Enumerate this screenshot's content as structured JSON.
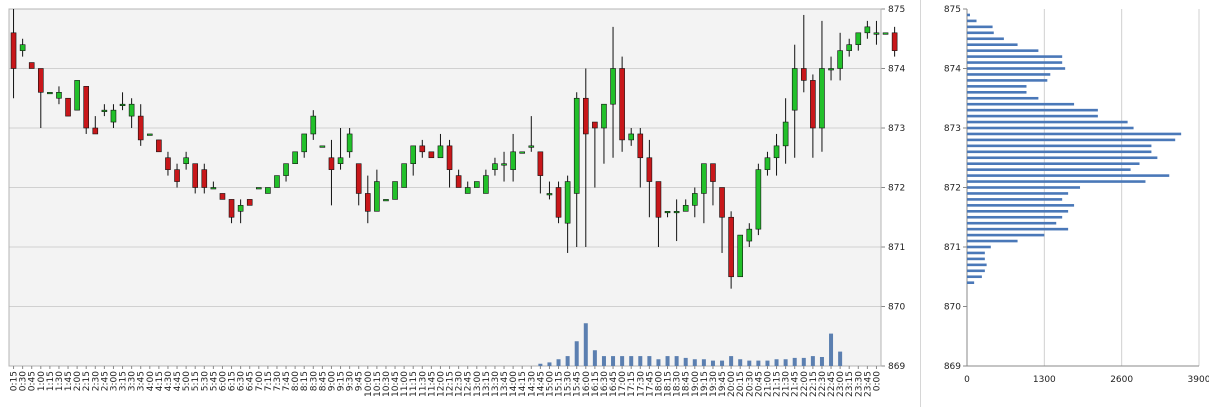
{
  "chart_data": [
    {
      "type": "candlestick",
      "x_labels": [
        "0:15",
        "0:30",
        "0:45",
        "1:00",
        "1:15",
        "1:30",
        "1:45",
        "2:00",
        "2:15",
        "2:30",
        "2:45",
        "3:00",
        "3:15",
        "3:30",
        "3:45",
        "4:00",
        "4:15",
        "4:30",
        "4:45",
        "5:00",
        "5:15",
        "5:30",
        "5:45",
        "6:00",
        "6:15",
        "6:30",
        "6:45",
        "7:00",
        "7:15",
        "7:30",
        "7:45",
        "8:00",
        "8:15",
        "8:30",
        "8:45",
        "9:00",
        "9:15",
        "9:30",
        "9:45",
        "10:00",
        "10:15",
        "10:30",
        "10:45",
        "11:00",
        "11:15",
        "11:30",
        "11:45",
        "12:00",
        "12:15",
        "12:30",
        "12:45",
        "13:00",
        "13:15",
        "13:30",
        "13:45",
        "14:00",
        "14:15",
        "14:30",
        "14:45",
        "15:00",
        "15:15",
        "15:30",
        "15:45",
        "16:00",
        "16:15",
        "16:30",
        "16:45",
        "17:00",
        "17:15",
        "17:30",
        "17:45",
        "18:00",
        "18:15",
        "18:30",
        "18:45",
        "19:00",
        "19:15",
        "19:30",
        "19:45",
        "20:00",
        "20:15",
        "20:30",
        "20:45",
        "21:00",
        "21:15",
        "21:30",
        "21:45",
        "22:00",
        "22:15",
        "22:30",
        "22:45",
        "23:00",
        "23:15",
        "23:30",
        "23:45",
        "0:00"
      ],
      "y_ticks": [
        869,
        870,
        871,
        872,
        873,
        874,
        875
      ],
      "ylim": [
        869,
        875
      ],
      "grid": true,
      "colors": {
        "up": "#22c02a",
        "down": "#c8171a",
        "volume": "#5b7fb0",
        "grid": "#d0d0d0",
        "plot_bg": "#f3f3f3"
      },
      "candles": [
        [
          874.6,
          875.0,
          873.5,
          874.0
        ],
        [
          874.3,
          874.5,
          874.2,
          874.4
        ],
        [
          874.1,
          874.1,
          874.0,
          874.0
        ],
        [
          874.0,
          874.0,
          873.0,
          873.6
        ],
        [
          873.6,
          873.6,
          873.6,
          873.6
        ],
        [
          873.5,
          873.7,
          873.4,
          873.6
        ],
        [
          873.5,
          873.5,
          873.2,
          873.2
        ],
        [
          873.3,
          873.8,
          873.3,
          873.8
        ],
        [
          873.7,
          873.7,
          872.9,
          873.0
        ],
        [
          873.0,
          873.2,
          872.9,
          872.9
        ],
        [
          873.3,
          873.4,
          873.2,
          873.3
        ],
        [
          873.1,
          873.4,
          873.0,
          873.3
        ],
        [
          873.4,
          873.6,
          873.3,
          873.4
        ],
        [
          873.2,
          873.5,
          873.0,
          873.4
        ],
        [
          873.2,
          873.4,
          872.7,
          872.8
        ],
        [
          872.9,
          872.9,
          872.9,
          872.9
        ],
        [
          872.8,
          872.8,
          872.6,
          872.6
        ],
        [
          872.5,
          872.6,
          872.2,
          872.3
        ],
        [
          872.3,
          872.4,
          872.0,
          872.1
        ],
        [
          872.4,
          872.6,
          872.3,
          872.5
        ],
        [
          872.4,
          872.4,
          871.9,
          872.0
        ],
        [
          872.3,
          872.4,
          871.9,
          872.0
        ],
        [
          872.0,
          872.1,
          872.0,
          872.0
        ],
        [
          871.9,
          871.9,
          871.8,
          871.8
        ],
        [
          871.8,
          871.8,
          871.4,
          871.5
        ],
        [
          871.6,
          871.8,
          871.4,
          871.7
        ],
        [
          871.8,
          871.8,
          871.7,
          871.7
        ],
        [
          872.0,
          872.0,
          872.0,
          872.0
        ],
        [
          871.9,
          872.0,
          871.9,
          872.0
        ],
        [
          872.0,
          872.2,
          872.0,
          872.2
        ],
        [
          872.2,
          872.4,
          872.1,
          872.4
        ],
        [
          872.4,
          872.6,
          872.4,
          872.6
        ],
        [
          872.6,
          872.9,
          872.5,
          872.9
        ],
        [
          872.9,
          873.3,
          872.8,
          873.2
        ],
        [
          872.7,
          872.7,
          872.7,
          872.7
        ],
        [
          872.5,
          872.8,
          871.7,
          872.3
        ],
        [
          872.4,
          873.0,
          872.3,
          872.5
        ],
        [
          872.6,
          873.0,
          872.5,
          872.9
        ],
        [
          872.4,
          872.4,
          871.7,
          871.9
        ],
        [
          871.9,
          872.2,
          871.4,
          871.6
        ],
        [
          871.6,
          872.3,
          871.6,
          872.1
        ],
        [
          871.8,
          871.8,
          871.8,
          871.8
        ],
        [
          871.8,
          872.1,
          871.8,
          872.1
        ],
        [
          872.0,
          872.4,
          872.0,
          872.4
        ],
        [
          872.4,
          872.7,
          872.2,
          872.7
        ],
        [
          872.7,
          872.8,
          872.5,
          872.6
        ],
        [
          872.6,
          872.6,
          872.5,
          872.5
        ],
        [
          872.5,
          872.9,
          872.5,
          872.7
        ],
        [
          872.7,
          872.8,
          872.0,
          872.3
        ],
        [
          872.2,
          872.3,
          872.0,
          872.0
        ],
        [
          871.9,
          872.1,
          871.9,
          872.0
        ],
        [
          872.0,
          872.1,
          872.0,
          872.1
        ],
        [
          871.9,
          872.3,
          871.9,
          872.2
        ],
        [
          872.3,
          872.5,
          872.2,
          872.4
        ],
        [
          872.4,
          872.6,
          872.1,
          872.4
        ],
        [
          872.3,
          872.9,
          872.1,
          872.6
        ],
        [
          872.6,
          872.6,
          872.6,
          872.6
        ],
        [
          872.7,
          873.2,
          872.6,
          872.7
        ],
        [
          872.6,
          872.6,
          871.9,
          872.2
        ],
        [
          871.9,
          872.1,
          871.8,
          871.9
        ],
        [
          872.0,
          872.1,
          871.4,
          871.5
        ],
        [
          871.4,
          872.2,
          870.9,
          872.1
        ],
        [
          871.9,
          873.6,
          871.0,
          873.5
        ],
        [
          873.5,
          874.0,
          871.0,
          872.9
        ],
        [
          873.1,
          873.1,
          872.0,
          873.0
        ],
        [
          873.0,
          873.4,
          872.4,
          873.4
        ],
        [
          873.4,
          874.7,
          872.5,
          874.0
        ],
        [
          874.0,
          874.2,
          872.6,
          872.8
        ],
        [
          872.8,
          873.0,
          872.7,
          872.9
        ],
        [
          872.9,
          873.0,
          872.0,
          872.5
        ],
        [
          872.5,
          872.8,
          871.5,
          872.1
        ],
        [
          872.1,
          872.1,
          871.0,
          871.5
        ],
        [
          871.6,
          871.6,
          871.5,
          871.6
        ],
        [
          871.6,
          871.8,
          871.1,
          871.6
        ],
        [
          871.6,
          871.8,
          871.6,
          871.7
        ],
        [
          871.7,
          872.0,
          871.5,
          871.9
        ],
        [
          871.9,
          872.4,
          871.4,
          872.4
        ],
        [
          872.4,
          872.4,
          871.7,
          872.1
        ],
        [
          872.0,
          872.0,
          870.9,
          871.5
        ],
        [
          871.5,
          871.6,
          870.3,
          870.5
        ],
        [
          870.5,
          871.2,
          870.5,
          871.2
        ],
        [
          871.1,
          871.4,
          871.0,
          871.3
        ],
        [
          871.3,
          872.4,
          871.2,
          872.3
        ],
        [
          872.3,
          872.6,
          872.2,
          872.5
        ],
        [
          872.5,
          872.9,
          872.2,
          872.7
        ],
        [
          872.7,
          873.5,
          872.4,
          873.1
        ],
        [
          873.3,
          874.4,
          872.5,
          874.0
        ],
        [
          874.0,
          874.9,
          873.6,
          873.8
        ],
        [
          873.8,
          873.9,
          872.5,
          873.0
        ],
        [
          873.0,
          874.8,
          872.6,
          874.0
        ],
        [
          874.0,
          874.2,
          873.8,
          874.0
        ],
        [
          874.0,
          874.6,
          873.8,
          874.3
        ],
        [
          874.3,
          874.5,
          874.2,
          874.4
        ],
        [
          874.4,
          874.6,
          874.3,
          874.6
        ],
        [
          874.6,
          874.8,
          874.5,
          874.7
        ],
        [
          874.6,
          874.8,
          874.4,
          874.6
        ],
        [
          874.6,
          874.6,
          874.6,
          874.6
        ],
        [
          874.6,
          874.7,
          874.2,
          874.3
        ]
      ],
      "volume": [
        0,
        0,
        0,
        0,
        0,
        0,
        0,
        0,
        0,
        0,
        0,
        0,
        0,
        0,
        0,
        0,
        0,
        0,
        0,
        0,
        0,
        0,
        0,
        0,
        0,
        0,
        0,
        0,
        0,
        0,
        0,
        0,
        0,
        0,
        0,
        0,
        0,
        0,
        0,
        0,
        0,
        0,
        0,
        0,
        0,
        0,
        0,
        0,
        0,
        0,
        0,
        0,
        0,
        0,
        0,
        0,
        0,
        0,
        0.05,
        0.08,
        0.15,
        0.22,
        0.55,
        0.95,
        0.35,
        0.22,
        0.22,
        0.22,
        0.22,
        0.22,
        0.22,
        0.15,
        0.22,
        0.22,
        0.18,
        0.15,
        0.15,
        0.12,
        0.12,
        0.22,
        0.15,
        0.12,
        0.12,
        0.12,
        0.15,
        0.15,
        0.18,
        0.18,
        0.22,
        0.2,
        0.72,
        0.32,
        0,
        0,
        0,
        0,
        0
      ]
    },
    {
      "type": "horizontal-bar",
      "title": "",
      "x_ticks": [
        0,
        1300,
        2600,
        3900
      ],
      "xlim": [
        0,
        3900
      ],
      "ylim": [
        869,
        875
      ],
      "y_ticks": [
        869,
        870,
        871,
        872,
        873,
        874,
        875
      ],
      "grid": true,
      "color": "#4a78b8",
      "bins": [
        {
          "price": 874.9,
          "value": 50
        },
        {
          "price": 874.8,
          "value": 160
        },
        {
          "price": 874.7,
          "value": 430
        },
        {
          "price": 874.6,
          "value": 450
        },
        {
          "price": 874.5,
          "value": 620
        },
        {
          "price": 874.4,
          "value": 850
        },
        {
          "price": 874.3,
          "value": 1200
        },
        {
          "price": 874.2,
          "value": 1600
        },
        {
          "price": 874.1,
          "value": 1600
        },
        {
          "price": 874.0,
          "value": 1650
        },
        {
          "price": 873.9,
          "value": 1400
        },
        {
          "price": 873.8,
          "value": 1350
        },
        {
          "price": 873.7,
          "value": 1000
        },
        {
          "price": 873.6,
          "value": 1000
        },
        {
          "price": 873.5,
          "value": 1200
        },
        {
          "price": 873.4,
          "value": 1800
        },
        {
          "price": 873.3,
          "value": 2200
        },
        {
          "price": 873.2,
          "value": 2200
        },
        {
          "price": 873.1,
          "value": 2700
        },
        {
          "price": 873.0,
          "value": 2800
        },
        {
          "price": 872.9,
          "value": 3600
        },
        {
          "price": 872.8,
          "value": 3500
        },
        {
          "price": 872.7,
          "value": 3100
        },
        {
          "price": 872.6,
          "value": 3100
        },
        {
          "price": 872.5,
          "value": 3200
        },
        {
          "price": 872.4,
          "value": 2900
        },
        {
          "price": 872.3,
          "value": 2750
        },
        {
          "price": 872.2,
          "value": 3400
        },
        {
          "price": 872.1,
          "value": 3000
        },
        {
          "price": 872.0,
          "value": 1900
        },
        {
          "price": 871.9,
          "value": 1700
        },
        {
          "price": 871.8,
          "value": 1600
        },
        {
          "price": 871.7,
          "value": 1800
        },
        {
          "price": 871.6,
          "value": 1700
        },
        {
          "price": 871.5,
          "value": 1600
        },
        {
          "price": 871.4,
          "value": 1500
        },
        {
          "price": 871.3,
          "value": 1700
        },
        {
          "price": 871.2,
          "value": 1300
        },
        {
          "price": 871.1,
          "value": 850
        },
        {
          "price": 871.0,
          "value": 400
        },
        {
          "price": 870.9,
          "value": 300
        },
        {
          "price": 870.8,
          "value": 300
        },
        {
          "price": 870.7,
          "value": 330
        },
        {
          "price": 870.6,
          "value": 300
        },
        {
          "price": 870.5,
          "value": 250
        },
        {
          "price": 870.4,
          "value": 120
        }
      ]
    }
  ]
}
